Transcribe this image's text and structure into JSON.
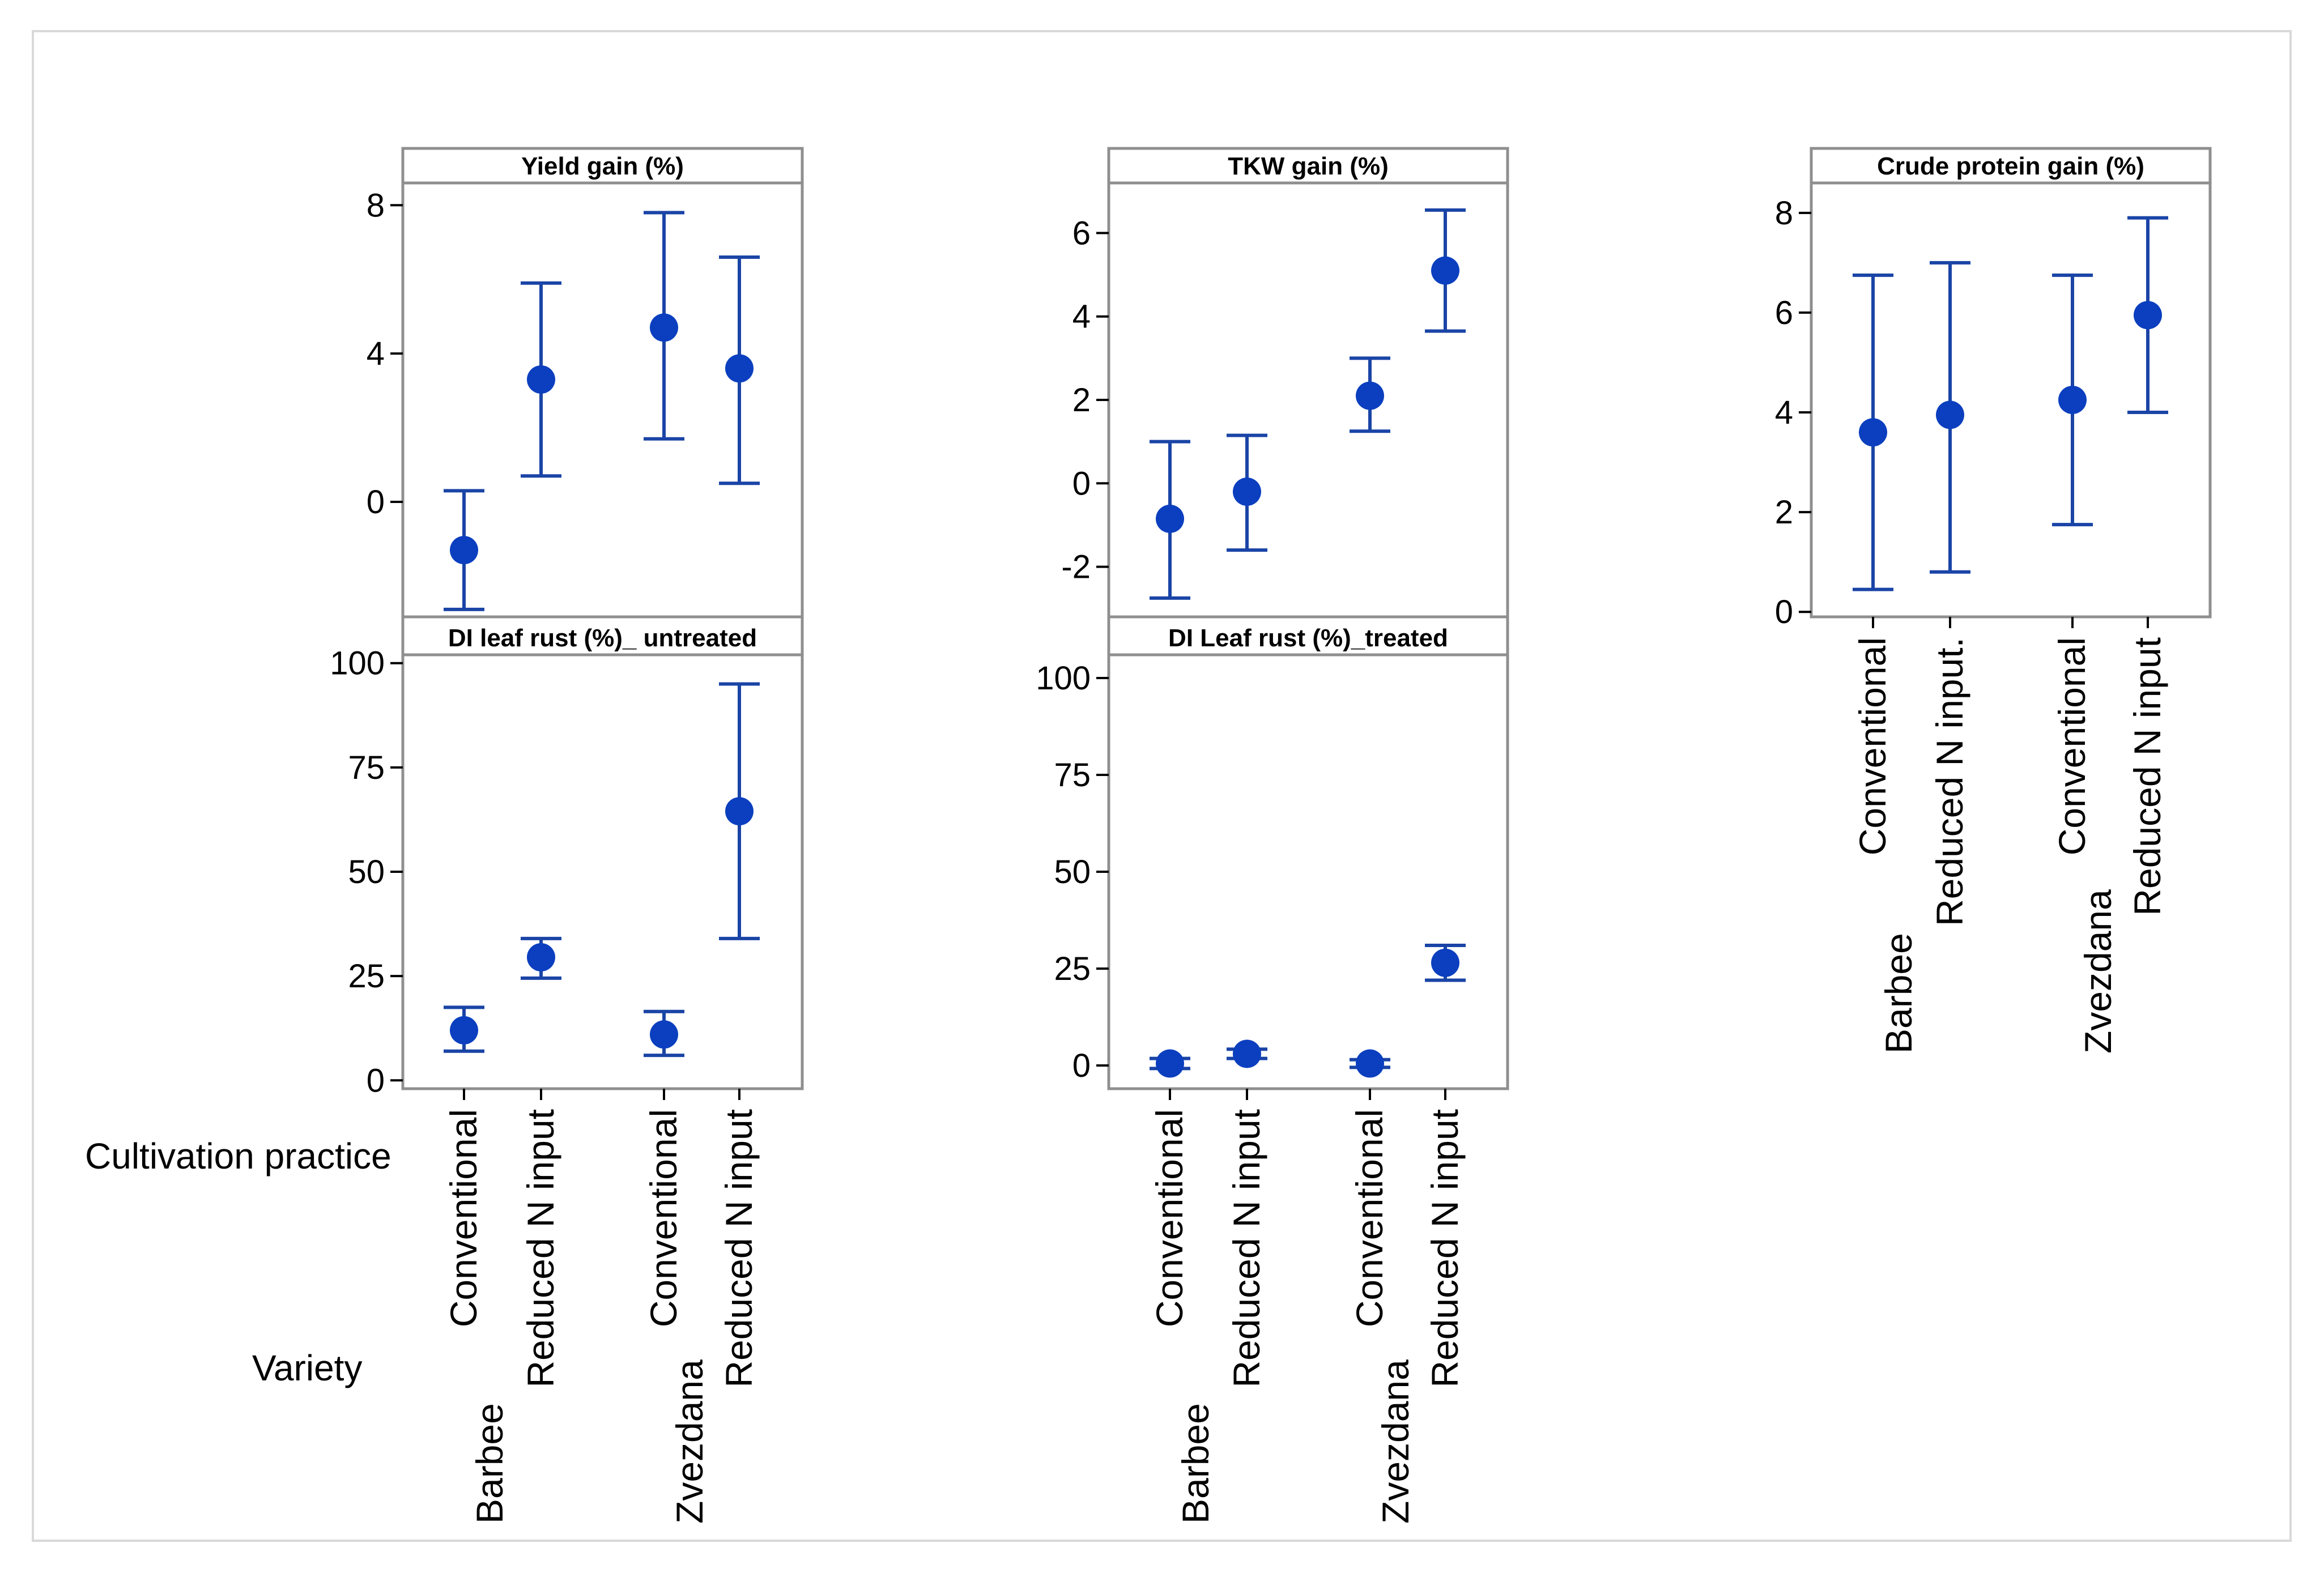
{
  "chart_data": [
    {
      "type": "scatter",
      "title": "Yield gain (%)",
      "categories": [
        "Conventional",
        "Reduced N input",
        "Conventional",
        "Reduced N input"
      ],
      "groups": [
        "Barbee",
        "Barbee",
        "Zvezdana",
        "Zvezdana"
      ],
      "values": [
        -1.3,
        3.3,
        4.7,
        3.6
      ],
      "lower": [
        -2.9,
        0.7,
        1.7,
        0.5
      ],
      "upper": [
        0.3,
        5.9,
        7.8,
        6.6
      ],
      "yticks": [
        0,
        4,
        8
      ],
      "ylim": [
        -3.1,
        8.6
      ]
    },
    {
      "type": "scatter",
      "title": "TKW gain (%)",
      "categories": [
        "Conventional",
        "Reduced N input",
        "Conventional",
        "Reduced N input"
      ],
      "groups": [
        "Barbee",
        "Barbee",
        "Zvezdana",
        "Zvezdana"
      ],
      "values": [
        -0.85,
        -0.2,
        2.1,
        5.1
      ],
      "lower": [
        -2.75,
        -1.6,
        1.25,
        3.65
      ],
      "upper": [
        1.0,
        1.15,
        3.0,
        6.55
      ],
      "yticks": [
        -2,
        0,
        2,
        4,
        6
      ],
      "ylim": [
        -3.2,
        7.2
      ]
    },
    {
      "type": "scatter",
      "title": "Crude protein gain (%)",
      "categories": [
        "Conventional",
        "Reduced N input.",
        "Conventional",
        "Reduced N input"
      ],
      "groups": [
        "Barbee",
        "Barbee",
        "Zvezdana",
        "Zvezdana"
      ],
      "values": [
        3.6,
        3.95,
        4.25,
        5.95
      ],
      "lower": [
        0.45,
        0.8,
        1.75,
        4.0
      ],
      "upper": [
        6.75,
        7.0,
        6.75,
        7.9
      ],
      "yticks": [
        0,
        2,
        4,
        6,
        8
      ],
      "ylim": [
        -0.1,
        8.6
      ]
    },
    {
      "type": "scatter",
      "title": "DI leaf rust (%)_ untreated",
      "categories": [
        "Conventional",
        "Reduced N input",
        "Conventional",
        "Reduced N input"
      ],
      "groups": [
        "Barbee",
        "Barbee",
        "Zvezdana",
        "Zvezdana"
      ],
      "values": [
        12,
        29.5,
        11,
        64.5
      ],
      "lower": [
        7,
        24.5,
        6,
        34
      ],
      "upper": [
        17.5,
        34,
        16.5,
        95
      ],
      "yticks": [
        0,
        25,
        50,
        75,
        100
      ],
      "ylim": [
        -2,
        102
      ]
    },
    {
      "type": "scatter",
      "title": "DI Leaf rust (%)_treated",
      "categories": [
        "Conventional",
        "Reduced N input",
        "Conventional",
        "Reduced N input"
      ],
      "groups": [
        "Barbee",
        "Barbee",
        "Zvezdana",
        "Zvezdana"
      ],
      "values": [
        0.5,
        3,
        0.5,
        26.5
      ],
      "lower": [
        -0.8,
        1.8,
        -0.5,
        22
      ],
      "upper": [
        1.8,
        4.2,
        1.5,
        31
      ],
      "yticks": [
        0,
        25,
        50,
        75,
        100
      ],
      "ylim": [
        -6,
        106
      ]
    }
  ],
  "row_labels": {
    "cultivation": "Cultivation practice",
    "variety": "Variety"
  },
  "colors": {
    "marker": "#0b3fbf",
    "errorbar": "#1a44a6"
  }
}
